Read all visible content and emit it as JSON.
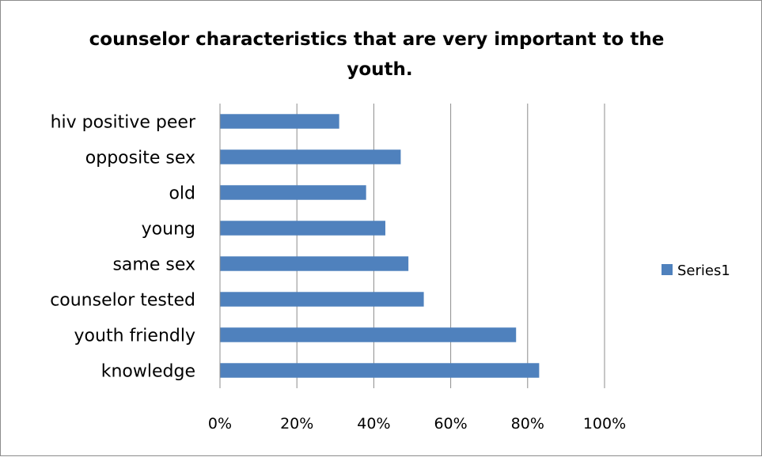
{
  "chart_data": {
    "type": "bar",
    "orientation": "horizontal",
    "title": "counselor characteristics that are very important to the youth.",
    "categories": [
      "hiv positive peer",
      "opposite sex",
      "old",
      "young",
      "same sex",
      "counselor tested",
      "youth friendly",
      "knowledge"
    ],
    "series": [
      {
        "name": "Series1",
        "values": [
          0.31,
          0.47,
          0.38,
          0.43,
          0.49,
          0.53,
          0.77,
          0.83
        ],
        "color": "#4F81BD"
      }
    ],
    "xlim": [
      0,
      1
    ],
    "ticks": [
      "0%",
      "20%",
      "40%",
      "60%",
      "80%",
      "100%"
    ],
    "grid": true,
    "legend_position": "right"
  }
}
